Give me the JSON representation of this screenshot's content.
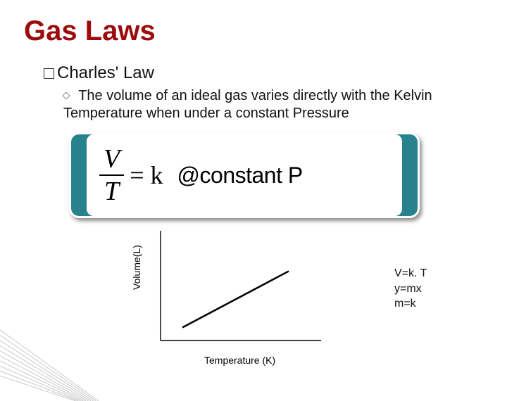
{
  "title": {
    "text": "Gas Laws",
    "color": "#9c0b0b",
    "fontsize": 40
  },
  "subtitle": {
    "text": "Charles' Law",
    "fontsize": 24,
    "color": "#111111"
  },
  "description": {
    "text": "The volume of an ideal gas varies directly with the Kelvin Temperature when under a constant Pressure",
    "fontsize": 20,
    "color": "#111111"
  },
  "formula": {
    "box_fill": "#28828d",
    "box_border": "#ffffff",
    "inner_fill": "#ffffff",
    "numerator": "V",
    "denominator": "T",
    "equals_k": "= k",
    "at_constant": "@constant P",
    "frac_fontsize": 38,
    "rest_fontsize": 36,
    "const_fontsize": 32
  },
  "chart": {
    "type": "line",
    "y_label": "Volume(L)",
    "x_label": "Temperature (K)",
    "label_fontsize": 14,
    "axis_color": "#000000",
    "line_color": "#000000",
    "line_width": 2.5,
    "xlim": [
      0,
      10
    ],
    "ylim": [
      0,
      10
    ],
    "points": [
      [
        1.4,
        1.2
      ],
      [
        8.2,
        6.4
      ]
    ]
  },
  "equations": {
    "lines": [
      "V=k. T",
      "y=mx",
      "m=k"
    ],
    "fontsize": 16,
    "color": "#111111"
  },
  "decoration": {
    "stroke": "#c9c9c9",
    "count": 10
  }
}
